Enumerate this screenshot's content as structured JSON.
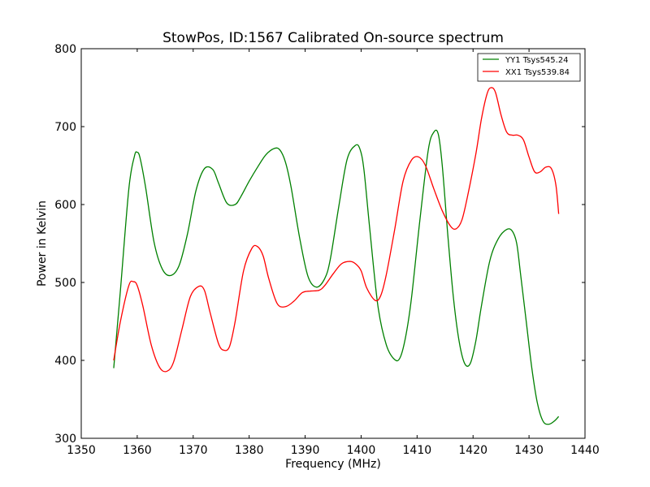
{
  "chart_data": {
    "type": "line",
    "title": "StowPos, ID:1567 Calibrated On-source spectrum",
    "xlabel": "Frequency (MHz)",
    "ylabel": "Power in Kelvin",
    "xlim": [
      1350,
      1440
    ],
    "ylim": [
      300,
      800
    ],
    "xticks": [
      1350,
      1360,
      1370,
      1380,
      1390,
      1400,
      1410,
      1420,
      1430,
      1440
    ],
    "yticks": [
      300,
      400,
      500,
      600,
      700,
      800
    ],
    "grid": false,
    "legend": "top-right",
    "series": [
      {
        "name": "YY1 Tsys545.24",
        "color": "#008000",
        "x": [
          1355.8,
          1357.0,
          1358.5,
          1359.5,
          1360.0,
          1360.5,
          1361.5,
          1363.0,
          1364.5,
          1366.0,
          1367.5,
          1369.0,
          1370.5,
          1372.0,
          1373.5,
          1374.5,
          1376.0,
          1377.5,
          1378.5,
          1380.0,
          1381.5,
          1383.0,
          1384.5,
          1385.5,
          1386.5,
          1387.5,
          1389.0,
          1390.5,
          1392.0,
          1393.5,
          1394.5,
          1396.0,
          1397.5,
          1399.0,
          1399.8,
          1400.5,
          1401.5,
          1403.0,
          1404.5,
          1406.0,
          1407.0,
          1408.0,
          1409.0,
          1410.5,
          1412.0,
          1413.0,
          1413.8,
          1414.5,
          1415.5,
          1416.5,
          1417.5,
          1418.5,
          1419.5,
          1420.5,
          1421.5,
          1423.0,
          1424.5,
          1426.0,
          1427.0,
          1427.8,
          1428.5,
          1429.5,
          1430.5,
          1431.5,
          1432.5,
          1433.5,
          1434.5,
          1435.3
        ],
        "values": [
          390,
          490,
          620,
          662,
          667,
          660,
          622,
          552,
          517,
          509,
          522,
          563,
          618,
          646,
          645,
          628,
          602,
          600,
          610,
          630,
          648,
          664,
          672,
          670,
          654,
          622,
          558,
          508,
          494,
          505,
          530,
          597,
          658,
          676,
          671,
          645,
          572,
          470,
          420,
          401,
          404,
          432,
          480,
          580,
          670,
          693,
          690,
          650,
          560,
          480,
          425,
          396,
          396,
          425,
          470,
          528,
          556,
          568,
          566,
          550,
          510,
          450,
          390,
          345,
          322,
          318,
          322,
          328
        ]
      },
      {
        "name": "XX1 Tsys539.84",
        "color": "#ff0000",
        "x": [
          1355.8,
          1357.0,
          1358.5,
          1359.3,
          1360.0,
          1361.0,
          1362.5,
          1364.0,
          1365.3,
          1366.5,
          1368.0,
          1369.5,
          1371.0,
          1372.0,
          1373.0,
          1374.5,
          1375.5,
          1376.5,
          1377.5,
          1379.0,
          1380.5,
          1381.5,
          1382.5,
          1383.5,
          1385.0,
          1386.5,
          1388.0,
          1389.5,
          1391.0,
          1392.5,
          1393.5,
          1395.0,
          1396.5,
          1398.0,
          1399.0,
          1400.0,
          1401.0,
          1402.5,
          1403.5,
          1404.5,
          1406.0,
          1407.5,
          1409.0,
          1410.3,
          1411.5,
          1413.0,
          1414.5,
          1416.0,
          1417.0,
          1418.0,
          1419.0,
          1420.5,
          1421.5,
          1422.5,
          1423.2,
          1424.0,
          1425.0,
          1426.0,
          1427.0,
          1428.0,
          1429.0,
          1430.0,
          1431.0,
          1432.0,
          1433.0,
          1434.0,
          1434.8,
          1435.3
        ],
        "values": [
          400,
          450,
          496,
          501,
          496,
          470,
          420,
          391,
          386,
          398,
          440,
          482,
          495,
          490,
          462,
          422,
          413,
          418,
          450,
          515,
          544,
          546,
          534,
          505,
          473,
          469,
          476,
          487,
          489,
          490,
          496,
          511,
          524,
          527,
          524,
          515,
          493,
          477,
          483,
          510,
          568,
          630,
          657,
          661,
          650,
          620,
          592,
          572,
          569,
          580,
          610,
          665,
          710,
          742,
          750,
          744,
          715,
          693,
          689,
          689,
          683,
          661,
          642,
          642,
          648,
          646,
          625,
          588
        ]
      }
    ]
  }
}
